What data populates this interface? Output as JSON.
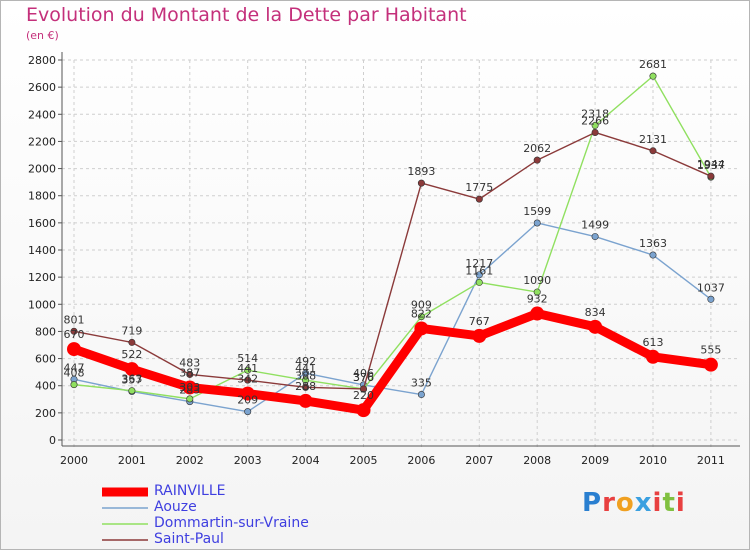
{
  "title": "Evolution du Montant de la Dette par Habitant",
  "unit": "(en €)",
  "logo_text": "Proxiti",
  "chart_data": {
    "type": "line",
    "x": [
      "2000",
      "2001",
      "2002",
      "2003",
      "2004",
      "2005",
      "2006",
      "2007",
      "2008",
      "2009",
      "2010",
      "2011"
    ],
    "ylim": [
      0,
      2800
    ],
    "yticks": [
      0,
      200,
      400,
      600,
      800,
      1000,
      1200,
      1400,
      1600,
      1800,
      2000,
      2200,
      2400,
      2600,
      2800
    ],
    "grid": true,
    "legend_position": "bottom-left",
    "series": [
      {
        "name": "RAINVILLE",
        "color": "#ff0000",
        "values": [
          670,
          522,
          387,
          342,
          288,
          220,
          822,
          767,
          932,
          834,
          613,
          555
        ]
      },
      {
        "name": "Aouze",
        "color": "#7ba3cf",
        "values": [
          447,
          357,
          283,
          209,
          492,
          406,
          335,
          1217,
          1599,
          1499,
          1363,
          1037
        ]
      },
      {
        "name": "Dommartin-sur-Vraine",
        "color": "#90e060",
        "values": [
          408,
          363,
          303,
          514,
          441,
          376,
          909,
          1161,
          1090,
          2318,
          2681,
          1937
        ]
      },
      {
        "name": "Saint-Paul",
        "color": "#8b3a3a",
        "values": [
          801,
          719,
          483,
          441,
          388,
          376,
          1893,
          1775,
          2062,
          2266,
          2131,
          1944
        ]
      }
    ]
  }
}
